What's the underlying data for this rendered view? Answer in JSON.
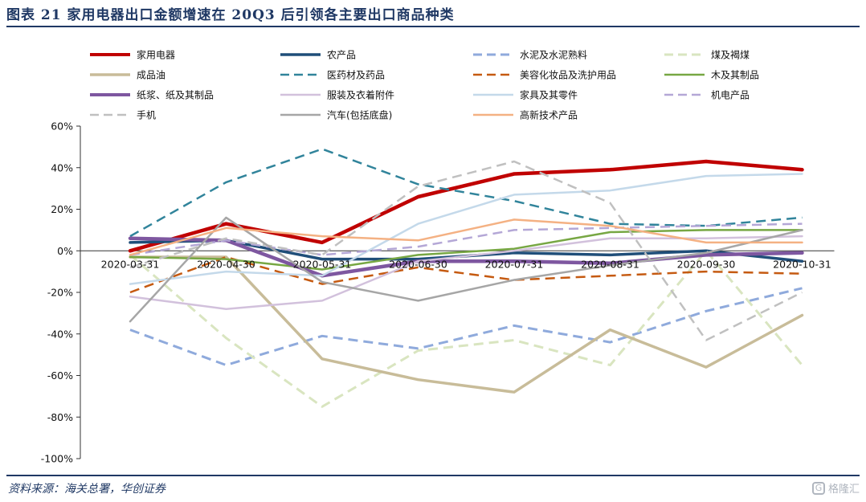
{
  "header": {
    "title": "图表 21   家用电器出口金额增速在 20Q3 后引领各主要出口商品种类"
  },
  "footer": {
    "source": "资料来源：海关总署，华创证券",
    "watermark": "格隆汇",
    "watermark_icon": "G-logo-icon"
  },
  "chart_data": {
    "type": "line",
    "title": "",
    "xlabel": "",
    "ylabel": "",
    "categories": [
      "2020-03-31",
      "2020-04-30",
      "2020-05-31",
      "2020-06-30",
      "2020-07-31",
      "2020-08-31",
      "2020-09-30",
      "2020-10-31"
    ],
    "ylim": [
      -100,
      60
    ],
    "yticks": [
      60,
      40,
      20,
      0,
      -20,
      -40,
      -60,
      -80,
      -100
    ],
    "ytick_labels": [
      "60%",
      "40%",
      "20%",
      "0%",
      "-20%",
      "-40%",
      "-60%",
      "-80%",
      "-100%"
    ],
    "grid": false,
    "legend_position": "top",
    "series": [
      {
        "name": "家用电器",
        "color": "#c00000",
        "dash": "solid",
        "width": 4.5,
        "values": [
          0,
          13,
          4,
          26,
          37,
          39,
          43,
          39
        ]
      },
      {
        "name": "农产品",
        "color": "#1f4e79",
        "dash": "solid",
        "width": 3.5,
        "values": [
          4,
          5,
          -4,
          -4,
          -1,
          -2,
          0,
          -5
        ]
      },
      {
        "name": "水泥及水泥熟料",
        "color": "#8faadc",
        "dash": "dashed",
        "width": 3,
        "values": [
          -38,
          -55,
          -41,
          -47,
          -36,
          -44,
          -29,
          -18
        ]
      },
      {
        "name": "煤及褐煤",
        "color": "#d9e5c0",
        "dash": "dashed",
        "width": 3,
        "values": [
          -2,
          -42,
          -75,
          -48,
          -43,
          -55,
          0,
          -55
        ]
      },
      {
        "name": "成品油",
        "color": "#c8bc99",
        "dash": "solid",
        "width": 3.5,
        "values": [
          -3,
          -3,
          -52,
          -62,
          -68,
          -38,
          -56,
          -31
        ]
      },
      {
        "name": "医药材及药品",
        "color": "#31849b",
        "dash": "dashed",
        "width": 2.5,
        "values": [
          7,
          33,
          49,
          32,
          24,
          13,
          12,
          16
        ]
      },
      {
        "name": "美容化妆品及洗护用品",
        "color": "#c55a11",
        "dash": "dashed",
        "width": 2.5,
        "values": [
          -20,
          -3,
          -16,
          -8,
          -14,
          -12,
          -10,
          -11
        ]
      },
      {
        "name": "木及其制品",
        "color": "#77a743",
        "dash": "solid",
        "width": 2.5,
        "values": [
          -3,
          -4,
          -9,
          -2,
          1,
          9,
          10,
          10
        ]
      },
      {
        "name": "纸浆、纸及其制品",
        "color": "#7e57a0",
        "dash": "solid",
        "width": 4.5,
        "values": [
          6,
          5,
          -12,
          -5,
          -5,
          -6,
          -2,
          -1
        ]
      },
      {
        "name": "服装及衣着附件",
        "color": "#d2c1dc",
        "dash": "solid",
        "width": 2.5,
        "values": [
          -22,
          -28,
          -24,
          -5,
          0,
          6,
          6,
          7
        ]
      },
      {
        "name": "家具及其零件",
        "color": "#c4d9ea",
        "dash": "solid",
        "width": 2.5,
        "values": [
          -16,
          -10,
          -12,
          13,
          27,
          29,
          36,
          37
        ]
      },
      {
        "name": "机电产品",
        "color": "#b4a7d6",
        "dash": "dashed",
        "width": 2.5,
        "values": [
          -2,
          5,
          -2,
          2,
          10,
          11,
          12,
          13
        ]
      },
      {
        "name": "手机",
        "color": "#c0c0c0",
        "dash": "dashed",
        "width": 2.5,
        "values": [
          -8,
          6,
          -2,
          31,
          43,
          23,
          -43,
          -20
        ]
      },
      {
        "name": "汽车(包括底盘)",
        "color": "#a6a6a6",
        "dash": "solid",
        "width": 2.5,
        "values": [
          -34,
          16,
          -15,
          -24,
          -14,
          -7,
          -1,
          10
        ]
      },
      {
        "name": "高新技术产品",
        "color": "#f4b183",
        "dash": "solid",
        "width": 2.5,
        "values": [
          -2,
          11,
          7,
          5,
          15,
          12,
          4,
          4
        ]
      }
    ]
  }
}
